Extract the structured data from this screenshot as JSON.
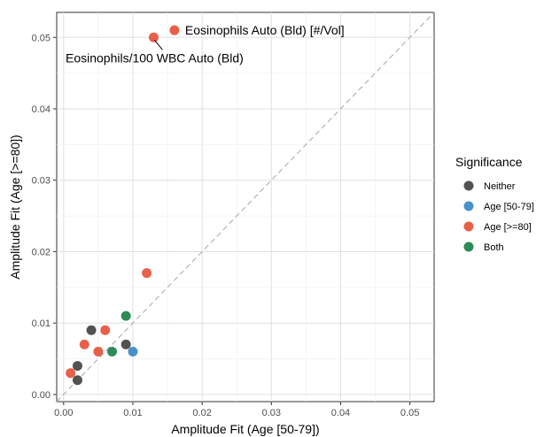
{
  "chart_data": {
    "type": "scatter",
    "xlabel": "Amplitude Fit (Age [50-79])",
    "ylabel": "Amplitude Fit (Age [>=80])",
    "xlim": [
      -0.001,
      0.0535
    ],
    "ylim": [
      -0.001,
      0.0535
    ],
    "x_ticks": [
      0.0,
      0.01,
      0.02,
      0.03,
      0.04,
      0.05
    ],
    "y_ticks": [
      0.0,
      0.01,
      0.02,
      0.03,
      0.04,
      0.05
    ],
    "x_tick_labels": [
      "0.00",
      "0.01",
      "0.02",
      "0.03",
      "0.04",
      "0.05"
    ],
    "y_tick_labels": [
      "0.00",
      "0.01",
      "0.02",
      "0.03",
      "0.04",
      "0.05"
    ],
    "reference_line": "y = x (dashed)",
    "grid": true,
    "legend": {
      "title": "Significance",
      "placement": "right",
      "entries": [
        {
          "label": "Neither",
          "color": "#525252"
        },
        {
          "label": "Age [50-79]",
          "color": "#4a90c8"
        },
        {
          "label": "Age [>=80]",
          "color": "#e8604a"
        },
        {
          "label": "Both",
          "color": "#2e8b57"
        }
      ]
    },
    "series": [
      {
        "name": "Neither",
        "color": "#525252",
        "points": [
          [
            0.002,
            0.002
          ],
          [
            0.002,
            0.004
          ],
          [
            0.004,
            0.009
          ],
          [
            0.009,
            0.007
          ]
        ]
      },
      {
        "name": "Age [50-79]",
        "color": "#4a90c8",
        "points": [
          [
            0.01,
            0.006
          ]
        ]
      },
      {
        "name": "Age [>=80]",
        "color": "#e8604a",
        "points": [
          [
            0.001,
            0.003
          ],
          [
            0.003,
            0.007
          ],
          [
            0.005,
            0.006
          ],
          [
            0.006,
            0.009
          ],
          [
            0.012,
            0.017
          ],
          [
            0.013,
            0.05
          ],
          [
            0.016,
            0.051
          ]
        ]
      },
      {
        "name": "Both",
        "color": "#2e8b57",
        "points": [
          [
            0.007,
            0.006
          ],
          [
            0.009,
            0.011
          ]
        ]
      }
    ],
    "annotations": [
      {
        "text": "Eosinophils Auto (Bld) [#/Vol]",
        "x": 0.016,
        "y": 0.051
      },
      {
        "text": "Eosinophils/100 WBC Auto (Bld)",
        "x": 0.013,
        "y": 0.05
      }
    ]
  }
}
